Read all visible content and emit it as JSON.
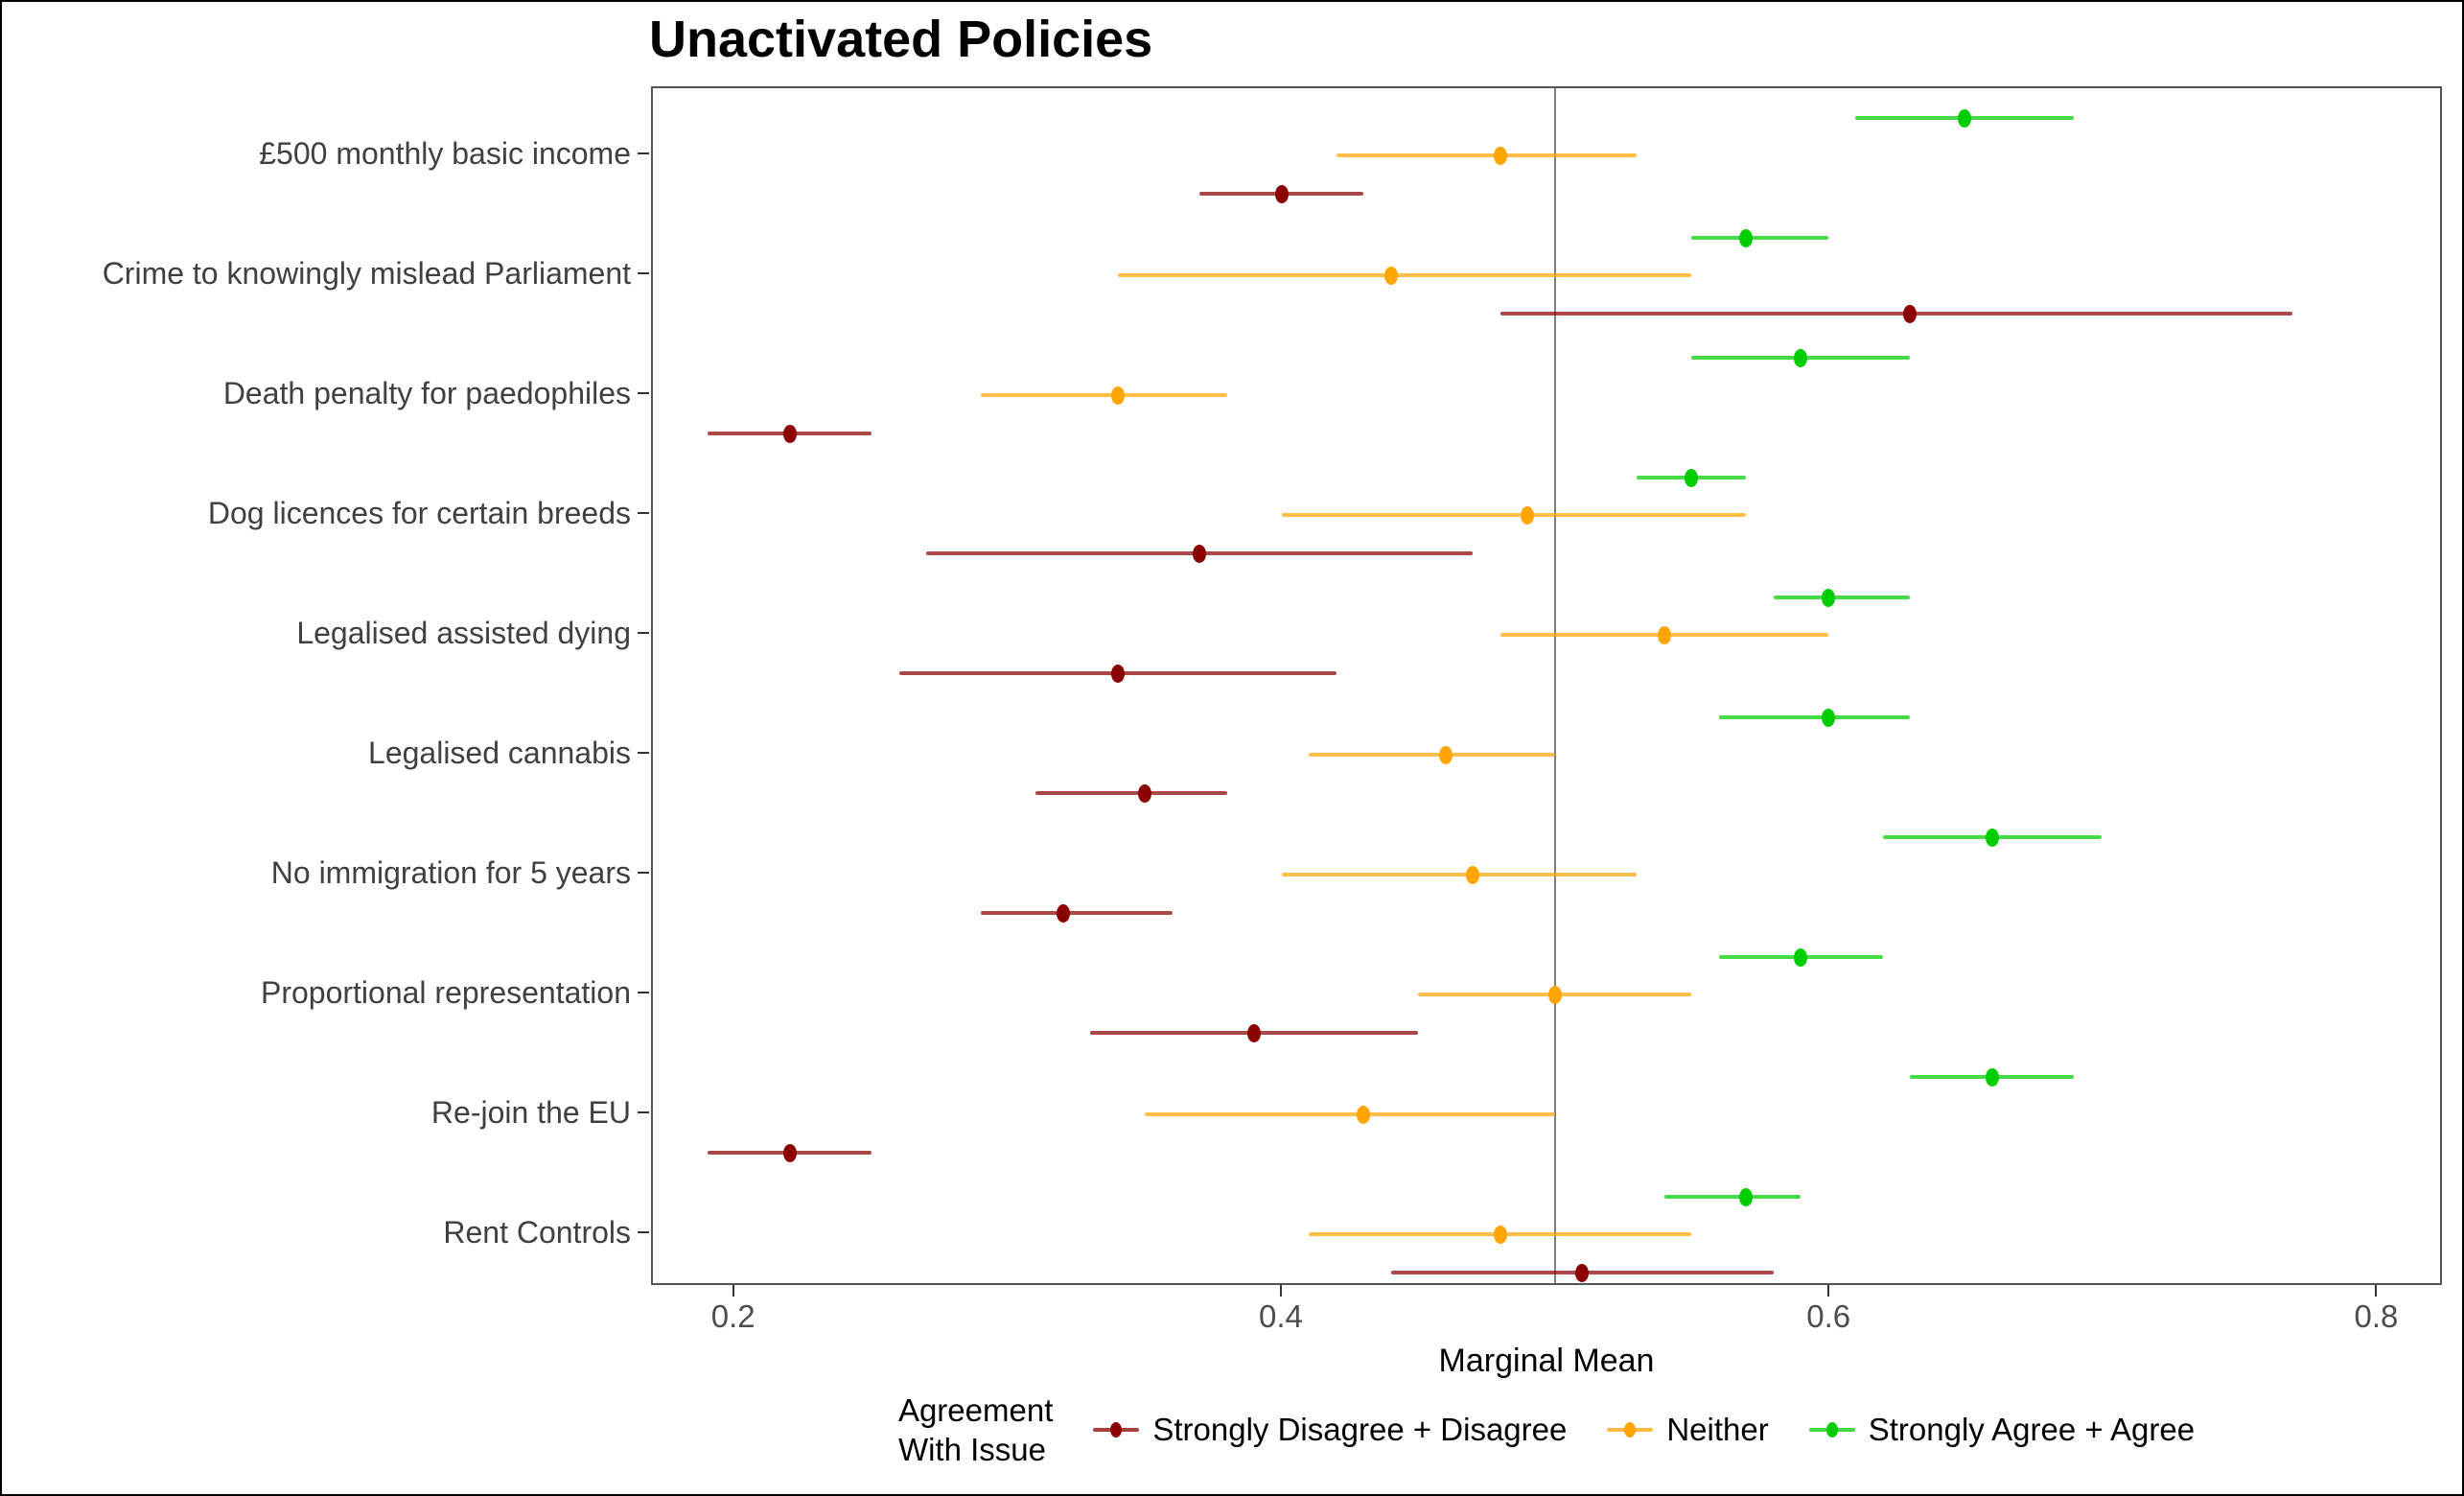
{
  "chart_data": {
    "type": "scatter",
    "subtype": "dot-whisker-forest",
    "title": "Unactivated Policies",
    "xlabel": "Marginal Mean",
    "xlim": [
      0.17,
      0.824
    ],
    "x_ticks": [
      {
        "value": 0.2,
        "label": "0.2"
      },
      {
        "value": 0.4,
        "label": "0.4"
      },
      {
        "value": 0.6,
        "label": "0.6"
      },
      {
        "value": 0.8,
        "label": "0.8"
      }
    ],
    "reference_line_x": 0.5,
    "grid": "off",
    "legend_position": "bottom",
    "legend_title_line1": "Agreement",
    "legend_title_line2": "With Issue",
    "series_meta": [
      {
        "key": "disagree",
        "name": "Strongly Disagree + Disagree",
        "color": "#8B0000"
      },
      {
        "key": "neither",
        "name": "Neither",
        "color": "#FFA500"
      },
      {
        "key": "agree",
        "name": "Strongly Agree + Agree",
        "color": "#00CD00"
      }
    ],
    "categories": [
      "£500 monthly basic income",
      "Crime to knowingly mislead Parliament",
      "Death penalty for paedophiles",
      "Dog licences for certain breeds",
      "Legalised assisted dying",
      "Legalised cannabis",
      "No immigration for 5 years",
      "Proportional representation",
      "Re-join the EU",
      "Rent Controls"
    ],
    "rows": [
      {
        "policy": "£500 monthly basic income",
        "agree": {
          "lo": 0.61,
          "mean": 0.65,
          "hi": 0.69
        },
        "neither": {
          "lo": 0.42,
          "mean": 0.48,
          "hi": 0.53
        },
        "disagree": {
          "lo": 0.37,
          "mean": 0.4,
          "hi": 0.43
        }
      },
      {
        "policy": "Crime to knowingly mislead Parliament",
        "agree": {
          "lo": 0.55,
          "mean": 0.57,
          "hi": 0.6
        },
        "neither": {
          "lo": 0.34,
          "mean": 0.44,
          "hi": 0.55
        },
        "disagree": {
          "lo": 0.48,
          "mean": 0.63,
          "hi": 0.77
        }
      },
      {
        "policy": "Death penalty for paedophiles",
        "agree": {
          "lo": 0.55,
          "mean": 0.59,
          "hi": 0.63
        },
        "neither": {
          "lo": 0.29,
          "mean": 0.34,
          "hi": 0.38
        },
        "disagree": {
          "lo": 0.19,
          "mean": 0.22,
          "hi": 0.25
        }
      },
      {
        "policy": "Dog licences for certain breeds",
        "agree": {
          "lo": 0.53,
          "mean": 0.55,
          "hi": 0.57
        },
        "neither": {
          "lo": 0.4,
          "mean": 0.49,
          "hi": 0.57
        },
        "disagree": {
          "lo": 0.27,
          "mean": 0.37,
          "hi": 0.47
        }
      },
      {
        "policy": "Legalised assisted dying",
        "agree": {
          "lo": 0.58,
          "mean": 0.6,
          "hi": 0.63
        },
        "neither": {
          "lo": 0.48,
          "mean": 0.54,
          "hi": 0.6
        },
        "disagree": {
          "lo": 0.26,
          "mean": 0.34,
          "hi": 0.42
        }
      },
      {
        "policy": "Legalised cannabis",
        "agree": {
          "lo": 0.56,
          "mean": 0.6,
          "hi": 0.63
        },
        "neither": {
          "lo": 0.41,
          "mean": 0.46,
          "hi": 0.5
        },
        "disagree": {
          "lo": 0.31,
          "mean": 0.35,
          "hi": 0.38
        }
      },
      {
        "policy": "No immigration for 5 years",
        "agree": {
          "lo": 0.62,
          "mean": 0.66,
          "hi": 0.7
        },
        "neither": {
          "lo": 0.4,
          "mean": 0.47,
          "hi": 0.53
        },
        "disagree": {
          "lo": 0.29,
          "mean": 0.32,
          "hi": 0.36
        }
      },
      {
        "policy": "Proportional representation",
        "agree": {
          "lo": 0.56,
          "mean": 0.59,
          "hi": 0.62
        },
        "neither": {
          "lo": 0.45,
          "mean": 0.5,
          "hi": 0.55
        },
        "disagree": {
          "lo": 0.33,
          "mean": 0.39,
          "hi": 0.45
        }
      },
      {
        "policy": "Re-join the EU",
        "agree": {
          "lo": 0.63,
          "mean": 0.66,
          "hi": 0.69
        },
        "neither": {
          "lo": 0.35,
          "mean": 0.43,
          "hi": 0.5
        },
        "disagree": {
          "lo": 0.19,
          "mean": 0.22,
          "hi": 0.25
        }
      },
      {
        "policy": "Rent Controls",
        "agree": {
          "lo": 0.54,
          "mean": 0.57,
          "hi": 0.59
        },
        "neither": {
          "lo": 0.41,
          "mean": 0.48,
          "hi": 0.55
        },
        "disagree": {
          "lo": 0.44,
          "mean": 0.51,
          "hi": 0.58
        }
      }
    ]
  }
}
